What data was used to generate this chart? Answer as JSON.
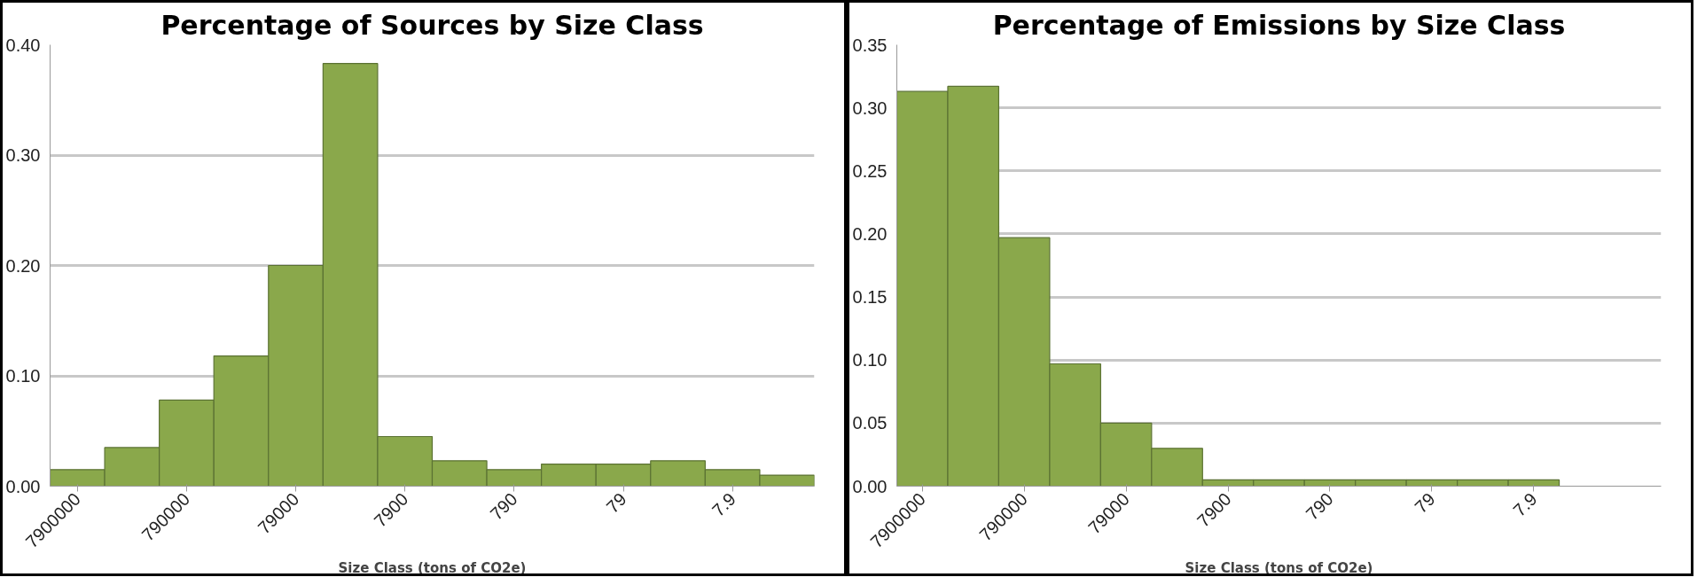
{
  "chart_data": [
    {
      "type": "bar",
      "title": "Percentage of Sources by Size Class",
      "xlabel": "Size Class (tons of CO2e)",
      "categories": [
        "7900000",
        null,
        "790000",
        null,
        "79000",
        null,
        "7900",
        null,
        "790",
        null,
        "79",
        null,
        "7.9",
        null
      ],
      "values": [
        0.015,
        0.035,
        0.078,
        0.118,
        0.2,
        0.383,
        0.045,
        0.023,
        0.015,
        0.02,
        0.02,
        0.023,
        0.015,
        0.01
      ],
      "color": "#8aa84b",
      "ylim": [
        0,
        0.4
      ],
      "yticks": [
        {
          "value": 0,
          "label": "0.00"
        },
        {
          "value": 0.1,
          "label": "0.10"
        },
        {
          "value": 0.2,
          "label": "0.20"
        },
        {
          "value": 0.3,
          "label": "0.30"
        },
        {
          "value": 0.4,
          "label": "0.40"
        }
      ],
      "grid": "y"
    },
    {
      "type": "bar",
      "title": "Percentage of Emissions by Size Class",
      "xlabel": "Size Class (tons of CO2e)",
      "categories": [
        "7900000",
        null,
        "790000",
        null,
        "79000",
        null,
        "7900",
        null,
        "790",
        null,
        "79",
        null,
        "7.9",
        null,
        null
      ],
      "values": [
        0.313,
        0.317,
        0.197,
        0.097,
        0.05,
        0.03,
        0.005,
        0.005,
        0.005,
        0.005,
        0.005,
        0.005,
        0.005,
        null,
        null
      ],
      "color": "#8aa84b",
      "ylim": [
        0,
        0.35
      ],
      "yticks": [
        {
          "value": 0,
          "label": "0.00"
        },
        {
          "value": 0.05,
          "label": "0.05"
        },
        {
          "value": 0.1,
          "label": "0.10"
        },
        {
          "value": 0.15,
          "label": "0.15"
        },
        {
          "value": 0.2,
          "label": "0.20"
        },
        {
          "value": 0.25,
          "label": "0.25"
        },
        {
          "value": 0.3,
          "label": "0.30"
        },
        {
          "value": 0.35,
          "label": "0.35"
        }
      ],
      "grid": "y"
    }
  ]
}
